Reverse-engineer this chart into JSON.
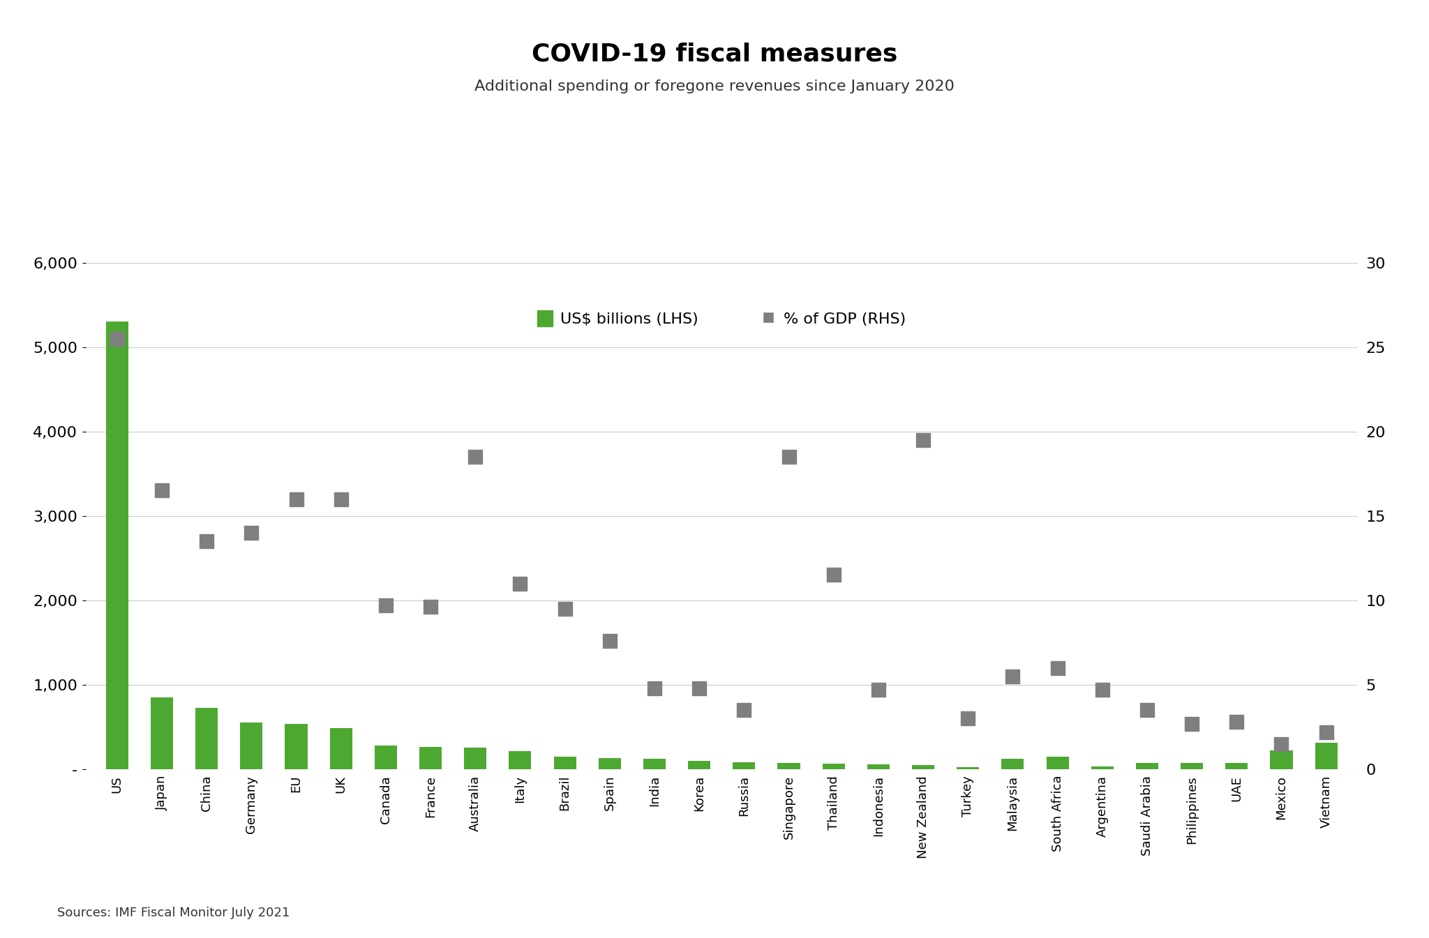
{
  "title": "COVID-19 fiscal measures",
  "subtitle": "Additional spending or foregone revenues since January 2020",
  "source": "Sources: IMF Fiscal Monitor July 2021",
  "categories": [
    "US",
    "Japan",
    "China",
    "Germany",
    "EU",
    "UK",
    "Canada",
    "France",
    "Australia",
    "Italy",
    "Brazil",
    "Spain",
    "India",
    "Korea",
    "Russia",
    "Singapore",
    "Thailand",
    "Indonesia",
    "New Zealand",
    "Turkey",
    "Malaysia",
    "South Africa",
    "Argentina",
    "Saudi Arabia",
    "Philippines",
    "UAE",
    "Mexico",
    "Vietnam"
  ],
  "bar_values": [
    5300,
    850,
    730,
    550,
    540,
    490,
    280,
    265,
    257,
    210,
    145,
    135,
    120,
    100,
    85,
    70,
    65,
    55,
    50,
    25,
    120,
    145,
    35,
    75,
    75,
    70,
    220,
    310
  ],
  "dot_values": [
    25.5,
    16.5,
    13.5,
    14.0,
    16.0,
    16.0,
    9.7,
    9.6,
    18.5,
    11.0,
    9.5,
    7.6,
    4.8,
    4.8,
    3.5,
    18.5,
    11.5,
    4.7,
    19.5,
    3.0,
    5.5,
    6.0,
    4.7,
    3.5,
    2.7,
    2.8,
    1.5,
    2.2
  ],
  "bar_color": "#4da832",
  "dot_color": "#7f7f7f",
  "background_color": "#ffffff",
  "ylim_left": [
    0,
    6000
  ],
  "ylim_right": [
    0,
    30
  ],
  "yticks_left": [
    0,
    1000,
    2000,
    3000,
    4000,
    5000,
    6000
  ],
  "ytick_labels_left": [
    "-",
    "1,000",
    "2,000",
    "3,000",
    "4,000",
    "5,000",
    "6,000"
  ],
  "yticks_right": [
    0,
    5,
    10,
    15,
    20,
    25,
    30
  ],
  "legend_bar_label": "US$ billions (LHS)",
  "legend_dot_label": "% of GDP (RHS)"
}
